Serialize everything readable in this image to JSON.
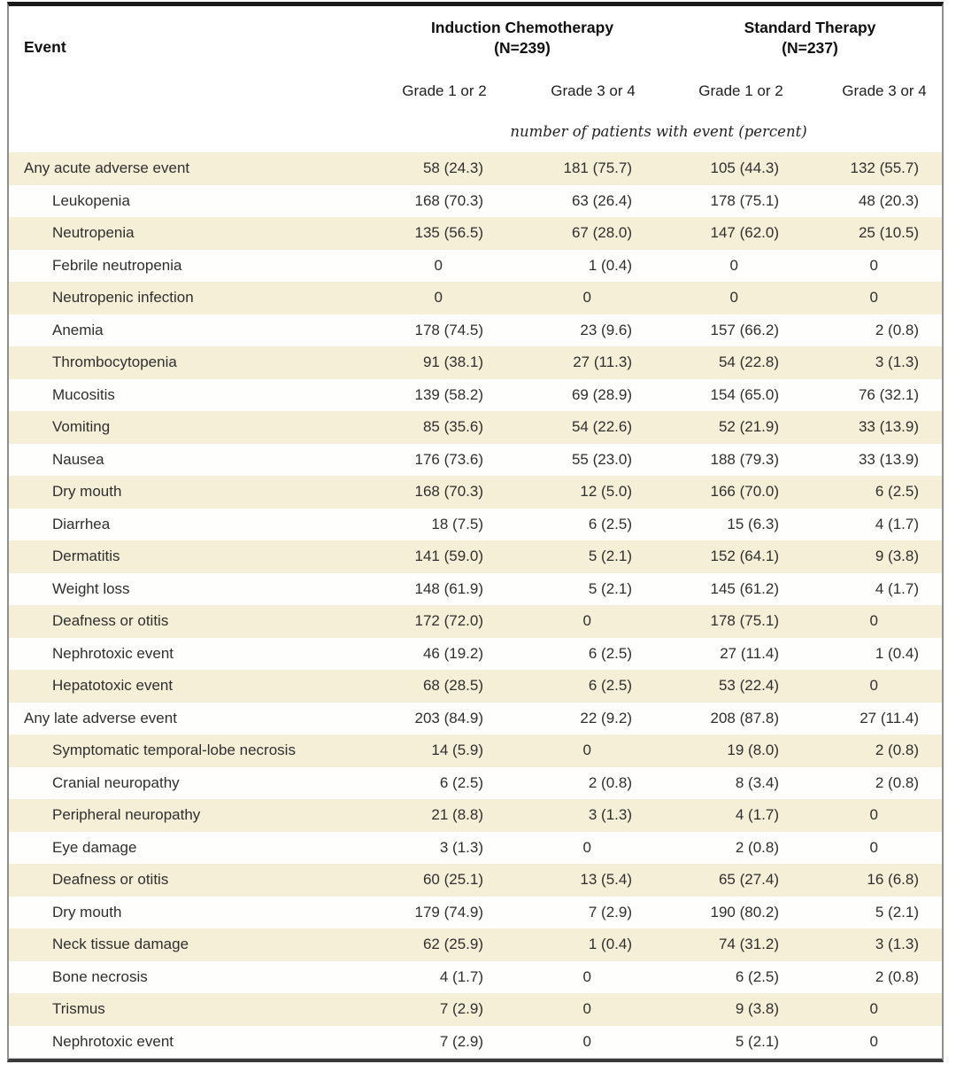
{
  "table": {
    "event_header": "Event",
    "group_headers": [
      {
        "label": "Induction Chemotherapy",
        "n": "(N=239)"
      },
      {
        "label": "Standard Therapy",
        "n": "(N=237)"
      }
    ],
    "grade_headers": [
      "Grade 1 or 2",
      "Grade 3 or 4",
      "Grade 1 or 2",
      "Grade 3 or 4"
    ],
    "units_note": "number of patients with event (percent)",
    "rows": [
      {
        "event": "Any acute adverse event",
        "indent": false,
        "values": [
          "58 (24.3)",
          "181 (75.7)",
          "105 (44.3)",
          "132 (55.7)"
        ]
      },
      {
        "event": "Leukopenia",
        "indent": true,
        "values": [
          "168 (70.3)",
          "63 (26.4)",
          "178 (75.1)",
          "48 (20.3)"
        ]
      },
      {
        "event": "Neutropenia",
        "indent": true,
        "values": [
          "135 (56.5)",
          "67 (28.0)",
          "147 (62.0)",
          "25 (10.5)"
        ]
      },
      {
        "event": "Febrile neutropenia",
        "indent": true,
        "values": [
          "0",
          "1 (0.4)",
          "0",
          "0"
        ]
      },
      {
        "event": "Neutropenic infection",
        "indent": true,
        "values": [
          "0",
          "0",
          "0",
          "0"
        ]
      },
      {
        "event": "Anemia",
        "indent": true,
        "values": [
          "178 (74.5)",
          "23 (9.6)",
          "157 (66.2)",
          "2 (0.8)"
        ]
      },
      {
        "event": "Thrombocytopenia",
        "indent": true,
        "values": [
          "91 (38.1)",
          "27 (11.3)",
          "54 (22.8)",
          "3 (1.3)"
        ]
      },
      {
        "event": "Mucositis",
        "indent": true,
        "values": [
          "139 (58.2)",
          "69 (28.9)",
          "154 (65.0)",
          "76 (32.1)"
        ]
      },
      {
        "event": "Vomiting",
        "indent": true,
        "values": [
          "85 (35.6)",
          "54 (22.6)",
          "52 (21.9)",
          "33 (13.9)"
        ]
      },
      {
        "event": "Nausea",
        "indent": true,
        "values": [
          "176 (73.6)",
          "55 (23.0)",
          "188 (79.3)",
          "33 (13.9)"
        ]
      },
      {
        "event": "Dry mouth",
        "indent": true,
        "values": [
          "168 (70.3)",
          "12 (5.0)",
          "166 (70.0)",
          "6 (2.5)"
        ]
      },
      {
        "event": "Diarrhea",
        "indent": true,
        "values": [
          "18 (7.5)",
          "6 (2.5)",
          "15 (6.3)",
          "4 (1.7)"
        ]
      },
      {
        "event": "Dermatitis",
        "indent": true,
        "values": [
          "141 (59.0)",
          "5 (2.1)",
          "152 (64.1)",
          "9 (3.8)"
        ]
      },
      {
        "event": "Weight loss",
        "indent": true,
        "values": [
          "148 (61.9)",
          "5 (2.1)",
          "145 (61.2)",
          "4 (1.7)"
        ]
      },
      {
        "event": "Deafness or otitis",
        "indent": true,
        "values": [
          "172 (72.0)",
          "0",
          "178 (75.1)",
          "0"
        ]
      },
      {
        "event": "Nephrotoxic event",
        "indent": true,
        "values": [
          "46 (19.2)",
          "6 (2.5)",
          "27 (11.4)",
          "1 (0.4)"
        ]
      },
      {
        "event": "Hepatotoxic event",
        "indent": true,
        "values": [
          "68 (28.5)",
          "6 (2.5)",
          "53 (22.4)",
          "0"
        ]
      },
      {
        "event": "Any late adverse event",
        "indent": false,
        "values": [
          "203 (84.9)",
          "22 (9.2)",
          "208 (87.8)",
          "27 (11.4)"
        ]
      },
      {
        "event": "Symptomatic temporal-lobe necrosis",
        "indent": true,
        "values": [
          "14 (5.9)",
          "0",
          "19 (8.0)",
          "2 (0.8)"
        ]
      },
      {
        "event": "Cranial neuropathy",
        "indent": true,
        "values": [
          "6 (2.5)",
          "2 (0.8)",
          "8 (3.4)",
          "2 (0.8)"
        ]
      },
      {
        "event": "Peripheral neuropathy",
        "indent": true,
        "values": [
          "21 (8.8)",
          "3 (1.3)",
          "4 (1.7)",
          "0"
        ]
      },
      {
        "event": "Eye damage",
        "indent": true,
        "values": [
          "3 (1.3)",
          "0",
          "2 (0.8)",
          "0"
        ]
      },
      {
        "event": "Deafness or otitis",
        "indent": true,
        "values": [
          "60 (25.1)",
          "13 (5.4)",
          "65 (27.4)",
          "16 (6.8)"
        ]
      },
      {
        "event": "Dry mouth",
        "indent": true,
        "values": [
          "179 (74.9)",
          "7 (2.9)",
          "190 (80.2)",
          "5 (2.1)"
        ]
      },
      {
        "event": "Neck tissue damage",
        "indent": true,
        "values": [
          "62 (25.9)",
          "1 (0.4)",
          "74 (31.2)",
          "3 (1.3)"
        ]
      },
      {
        "event": "Bone necrosis",
        "indent": true,
        "values": [
          "4 (1.7)",
          "0",
          "6 (2.5)",
          "2 (0.8)"
        ]
      },
      {
        "event": "Trismus",
        "indent": true,
        "values": [
          "7 (2.9)",
          "0",
          "9 (3.8)",
          "0"
        ]
      },
      {
        "event": "Nephrotoxic event",
        "indent": true,
        "values": [
          "7 (2.9)",
          "0",
          "5 (2.1)",
          "0"
        ]
      }
    ]
  },
  "colors": {
    "row_stripe": "#f6efd8",
    "top_rule": "#1a1a1a",
    "side_rule": "#8f8f8f",
    "bottom_rule": "#3a3a3a",
    "text": "#2f2f2f"
  }
}
